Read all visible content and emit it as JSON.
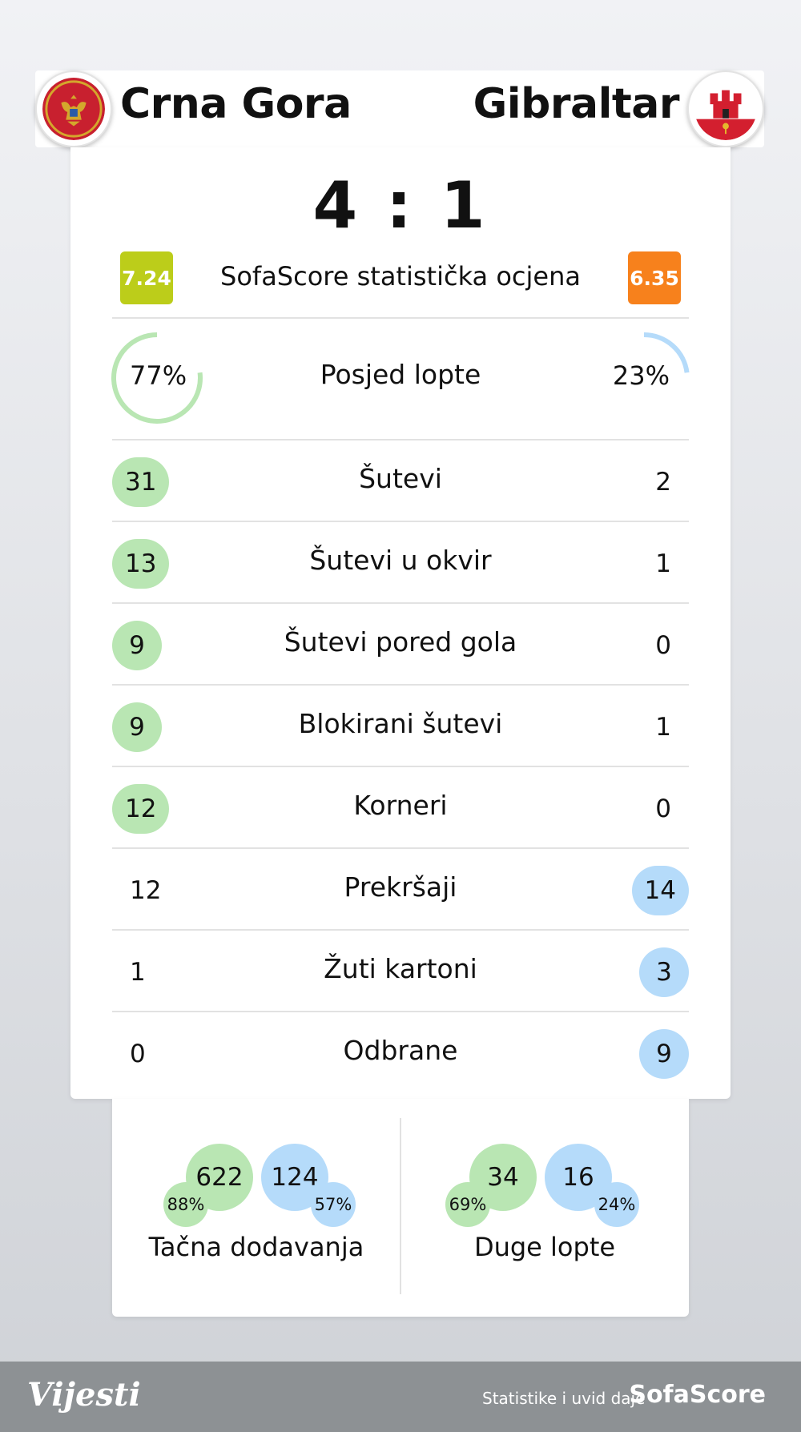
{
  "match": {
    "home_team": "Crna Gora",
    "away_team": "Gibraltar",
    "score": "4 : 1"
  },
  "rating": {
    "label": "SofaScore statistička ocjena",
    "home": "7.24",
    "away": "6.35",
    "home_color": "#bccd1a",
    "away_color": "#f7811c"
  },
  "possession": {
    "label": "Posjed lopte",
    "home": "77%",
    "away": "23%",
    "home_fraction": 0.77,
    "away_fraction": 0.23
  },
  "stats": [
    {
      "label": "Šutevi",
      "home": "31",
      "away": "2",
      "leader": "home"
    },
    {
      "label": "Šutevi u okvir",
      "home": "13",
      "away": "1",
      "leader": "home"
    },
    {
      "label": "Šutevi pored gola",
      "home": "9",
      "away": "0",
      "leader": "home"
    },
    {
      "label": "Blokirani šutevi",
      "home": "9",
      "away": "1",
      "leader": "home"
    },
    {
      "label": "Korneri",
      "home": "12",
      "away": "0",
      "leader": "home"
    },
    {
      "label": "Prekršaji",
      "home": "12",
      "away": "14",
      "leader": "away"
    },
    {
      "label": "Žuti kartoni",
      "home": "1",
      "away": "3",
      "leader": "away"
    },
    {
      "label": "Odbrane",
      "home": "0",
      "away": "9",
      "leader": "away"
    }
  ],
  "passing": {
    "accurate": {
      "label": "Tačna dodavanja",
      "home_value": "622",
      "home_pct": "88%",
      "away_value": "124",
      "away_pct": "57%"
    },
    "long_balls": {
      "label": "Duge lopte",
      "home_value": "34",
      "home_pct": "69%",
      "away_value": "16",
      "away_pct": "24%"
    }
  },
  "footer": {
    "logo": "Vijesti",
    "credit": "Statistike i uvid daje",
    "brand": "SofaScore"
  },
  "colors": {
    "home_accent": "#b9e6b3",
    "away_accent": "#b5dbfa"
  },
  "icons": {
    "home_flag": "montenegro-flag-icon",
    "away_flag": "gibraltar-flag-icon"
  }
}
